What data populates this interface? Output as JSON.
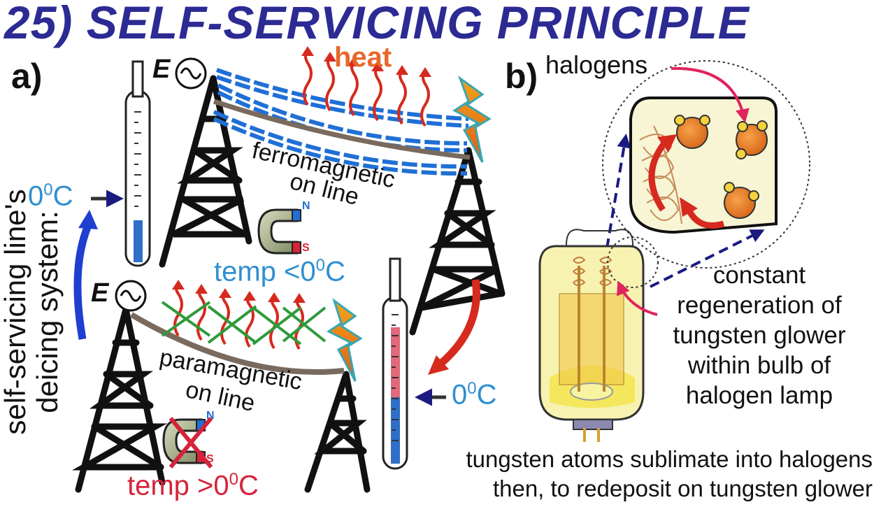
{
  "title": "25) SELF-SERVICING PRINCIPLE",
  "panel_a": {
    "label": "a)",
    "heat_label": "heat",
    "ferromagnetic_line_1": "ferromagnetic",
    "ferromagnetic_line_2": "on line",
    "paramagnetic_line_1": "paramagnetic",
    "paramagnetic_line_2": "on line",
    "temp_below": "temp <0",
    "temp_above": "temp >0",
    "degree_unit": "C",
    "degree_sup": "0",
    "zero_c_left": "0",
    "zero_c_right": "0",
    "generator_label": "E",
    "magnet_north": "N",
    "magnet_south": "S",
    "vertical_line_1": "self-servicing line's",
    "vertical_line_2": "deicing system:"
  },
  "panel_b": {
    "label": "b)",
    "halogens_label": "halogens",
    "regeneration_lines": [
      "constant",
      "regeneration of",
      "tungsten glower",
      "within bulb of",
      "halogen lamp"
    ],
    "bottom_lines": [
      "tungsten atoms sublimate into halogens",
      "then, to redeposit on tungsten glower"
    ]
  },
  "colors": {
    "title": "#2c2a93",
    "blue_text": "#2f8fd0",
    "red_text": "#d6233a",
    "heat": "#e8672a",
    "ferromagnetic_coating": "#1f6fd6",
    "wire": "#7a6a5e",
    "tower": "#111111",
    "arrow_red": "#d62a1e",
    "arrow_blue": "#1f3fd0",
    "bulb": "#f7f2b0"
  }
}
